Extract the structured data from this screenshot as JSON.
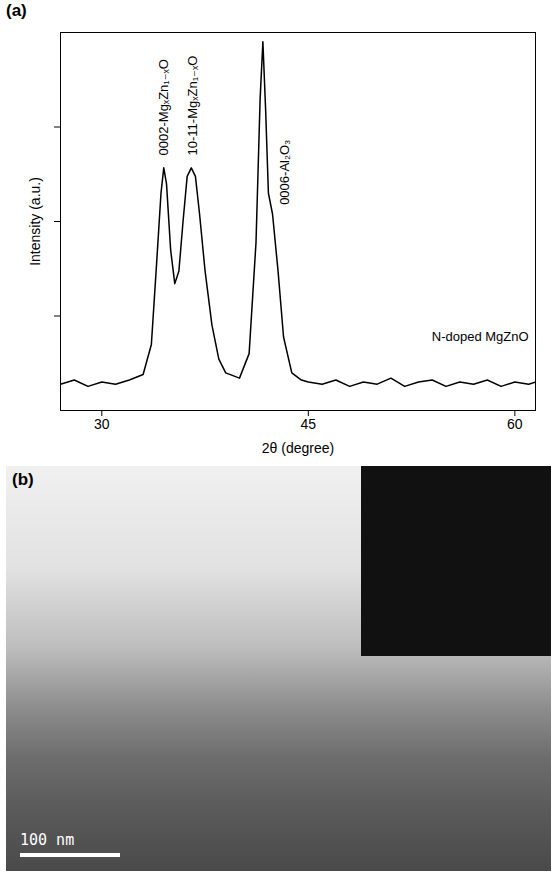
{
  "chart_data": {
    "type": "line",
    "panel": "(a)",
    "x_label": "2θ (degree)",
    "y_label": "Intensity (a.u.)",
    "log": "y",
    "tick_labels": "x",
    "color": "#000000",
    "xlim": [
      27,
      61.5
    ],
    "xticks": [
      30,
      45,
      60
    ],
    "ylim": [
      1,
      10000
    ],
    "yticks": [
      10,
      100,
      1000
    ],
    "x": [
      27,
      28,
      29,
      30,
      31,
      32,
      33,
      33.6,
      34.0,
      34.3,
      34.5,
      34.7,
      35.0,
      35.3,
      35.6,
      35.9,
      36.2,
      36.5,
      36.8,
      37.1,
      37.5,
      38,
      38.5,
      39,
      40,
      40.7,
      41.2,
      41.5,
      41.7,
      41.9,
      42.1,
      42.4,
      42.8,
      43.2,
      43.8,
      44.5,
      45,
      46,
      47,
      48,
      49,
      50,
      51,
      52,
      53,
      54,
      55,
      56,
      57,
      58,
      59,
      60,
      61,
      61.5
    ],
    "values": [
      1.9,
      2.1,
      1.8,
      2.0,
      1.9,
      2.1,
      2.4,
      5,
      40,
      200,
      370,
      250,
      50,
      22,
      30,
      100,
      300,
      370,
      300,
      120,
      30,
      8,
      3.5,
      2.5,
      2.2,
      4,
      60,
      2000,
      8000,
      1500,
      200,
      120,
      30,
      6,
      2.5,
      2.1,
      2.0,
      1.9,
      2.1,
      1.8,
      2.0,
      1.9,
      2.2,
      1.8,
      2.0,
      2.1,
      1.8,
      2.0,
      1.9,
      2.1,
      1.8,
      2.0,
      1.9,
      2.0
    ],
    "annotations": [
      {
        "text": "0002-MgₓZn₁₋ₓO",
        "x": 34.5,
        "y": 500
      },
      {
        "text": "10-11-MgₓZn₁₋ₓO",
        "x": 36.6,
        "y": 500
      },
      {
        "text": "0006-Al₂O₃",
        "x": 43.3,
        "y": 150
      },
      {
        "text": "N-doped MgZnO",
        "x": 61,
        "y": 6
      }
    ]
  },
  "panel_b": {
    "label": "(b)",
    "scale_bar": "100 nm"
  }
}
